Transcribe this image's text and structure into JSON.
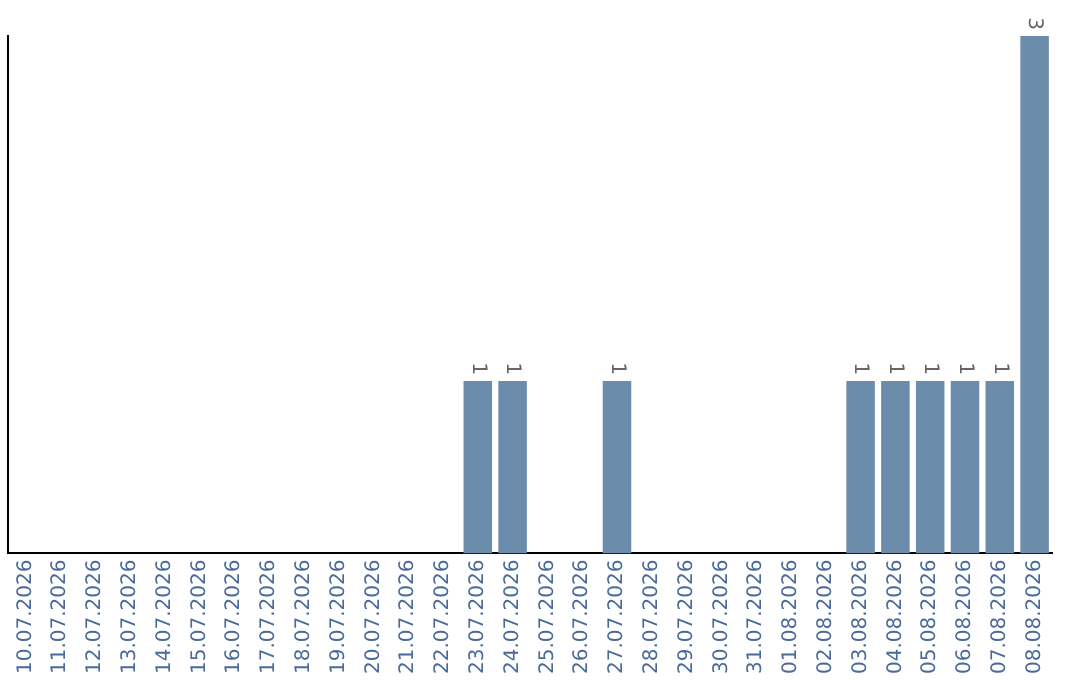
{
  "chart_data": {
    "type": "bar",
    "categories": [
      "10.07.2026",
      "11.07.2026",
      "12.07.2026",
      "13.07.2026",
      "14.07.2026",
      "15.07.2026",
      "16.07.2026",
      "17.07.2026",
      "18.07.2026",
      "19.07.2026",
      "20.07.2026",
      "21.07.2026",
      "22.07.2026",
      "23.07.2026",
      "24.07.2026",
      "25.07.2026",
      "26.07.2026",
      "27.07.2026",
      "28.07.2026",
      "29.07.2026",
      "30.07.2026",
      "31.07.2026",
      "01.08.2026",
      "02.08.2026",
      "03.08.2026",
      "04.08.2026",
      "05.08.2026",
      "06.08.2026",
      "07.08.2026",
      "08.08.2026"
    ],
    "values": [
      null,
      null,
      null,
      null,
      null,
      null,
      null,
      null,
      null,
      null,
      null,
      null,
      null,
      1,
      1,
      null,
      null,
      1,
      null,
      null,
      null,
      null,
      null,
      null,
      1,
      1,
      1,
      1,
      1,
      3
    ],
    "color": "#6c8cac",
    "data_labels": true,
    "grid": false,
    "legend": false
  }
}
